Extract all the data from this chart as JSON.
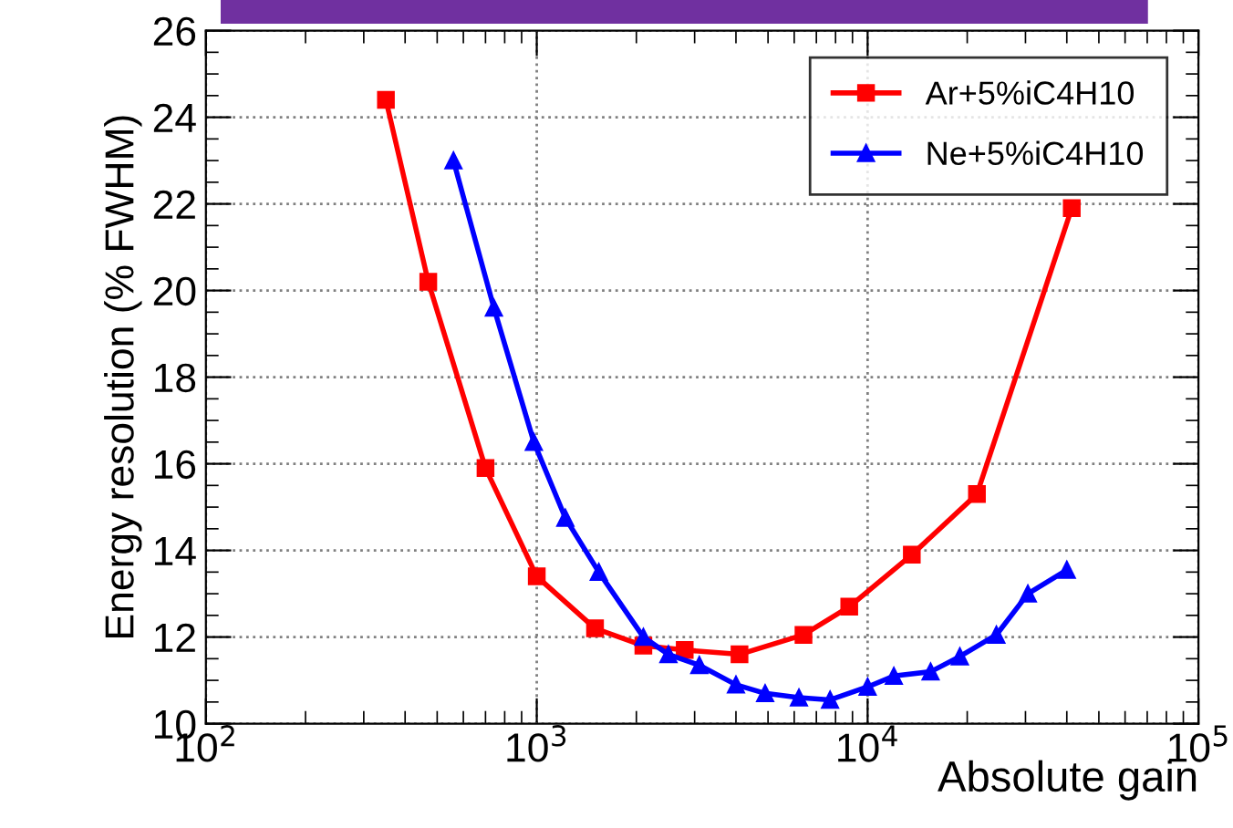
{
  "chart_data": {
    "type": "line",
    "xlabel": "Absolute gain",
    "ylabel": "Energy resolution (% FWHM)",
    "log": "x",
    "xlim": [
      100,
      100000
    ],
    "ylim": [
      10,
      26
    ],
    "xticks": [
      {
        "value": 100,
        "label": "10$^{2}$"
      },
      {
        "value": 1000,
        "label": "10$^{3}$"
      },
      {
        "value": 10000,
        "label": "10$^{4}$"
      },
      {
        "value": 100000,
        "label": "10$^{5}$"
      }
    ],
    "yticks": [
      10,
      12,
      14,
      16,
      18,
      20,
      22,
      24,
      26
    ],
    "grid": true,
    "legend": "top right",
    "series": [
      {
        "name": "Ar+5%iC4H10",
        "color": "#ff0000",
        "marker": "square",
        "x": [
          350,
          470,
          700,
          1000,
          1500,
          2100,
          2800,
          4100,
          6400,
          8800,
          13600,
          21400,
          41400
        ],
        "values": [
          24.4,
          20.2,
          15.9,
          13.4,
          12.2,
          11.8,
          11.7,
          11.6,
          12.05,
          12.7,
          13.9,
          15.3,
          21.9
        ]
      },
      {
        "name": "Ne+5%iC4H10",
        "color": "#0000ff",
        "marker": "triangle",
        "x": [
          560,
          742,
          980,
          1220,
          1540,
          2100,
          2500,
          3100,
          4000,
          4900,
          6200,
          7700,
          10000,
          12000,
          15500,
          19000,
          24500,
          30500,
          40000
        ],
        "values": [
          23.0,
          19.6,
          16.5,
          14.75,
          13.5,
          12.0,
          11.6,
          11.35,
          10.9,
          10.7,
          10.6,
          10.55,
          10.85,
          11.1,
          11.2,
          11.55,
          12.05,
          13.0,
          13.55
        ]
      }
    ]
  }
}
